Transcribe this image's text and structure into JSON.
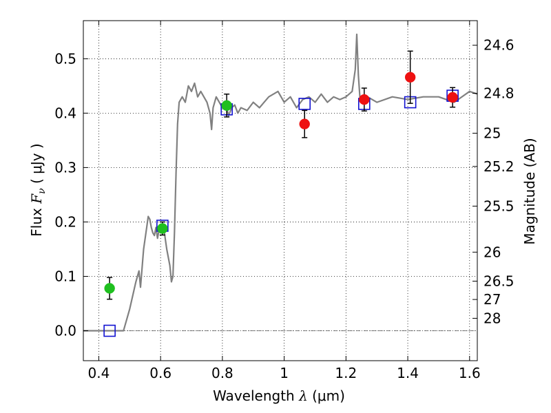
{
  "chart_data": {
    "type": "scatter",
    "title": "",
    "xlabel": {
      "pre": "Wavelength  ",
      "sym": "λ",
      "unit": " (μm)"
    },
    "ylabel": {
      "pre": "Flux  ",
      "sym": "F",
      "sub": "ν",
      "unit": "  ( μJy )"
    },
    "y2label": "Magnitude (AB)",
    "xlim": [
      0.35,
      1.625
    ],
    "ylim": [
      -0.055,
      0.57
    ],
    "grid": true,
    "xticks": [
      {
        "v": 0.4,
        "label": "0.4"
      },
      {
        "v": 0.6,
        "label": "0.6"
      },
      {
        "v": 0.8,
        "label": "0.8"
      },
      {
        "v": 1.0,
        "label": "1"
      },
      {
        "v": 1.2,
        "label": "1.2"
      },
      {
        "v": 1.4,
        "label": "1.4"
      },
      {
        "v": 1.6,
        "label": "1.6"
      }
    ],
    "yticks": [
      {
        "v": 0.0,
        "label": "0.0"
      },
      {
        "v": 0.1,
        "label": "0.1"
      },
      {
        "v": 0.2,
        "label": "0.2"
      },
      {
        "v": 0.3,
        "label": "0.3"
      },
      {
        "v": 0.4,
        "label": "0.4"
      },
      {
        "v": 0.5,
        "label": "0.5"
      }
    ],
    "y2ticks": [
      {
        "label": "24.6",
        "flux": 0.5248
      },
      {
        "label": "24.8",
        "flux": 0.4365
      },
      {
        "label": "25",
        "flux": 0.3631
      },
      {
        "label": "25.2",
        "flux": 0.302
      },
      {
        "label": "25.5",
        "flux": 0.2291
      },
      {
        "label": "26",
        "flux": 0.1445
      },
      {
        "label": "26.5",
        "flux": 0.0912
      },
      {
        "label": "27",
        "flux": 0.0575
      },
      {
        "label": "28",
        "flux": 0.0229
      }
    ],
    "series": [
      {
        "type": "line",
        "color": "#808080",
        "x": [
          0.35,
          0.48,
          0.5,
          0.52,
          0.53,
          0.535,
          0.545,
          0.555,
          0.56,
          0.565,
          0.57,
          0.575,
          0.58,
          0.585,
          0.59,
          0.595,
          0.6,
          0.61,
          0.62,
          0.63,
          0.635,
          0.64,
          0.645,
          0.65,
          0.655,
          0.66,
          0.67,
          0.68,
          0.69,
          0.7,
          0.71,
          0.72,
          0.73,
          0.74,
          0.75,
          0.76,
          0.765,
          0.77,
          0.78,
          0.79,
          0.8,
          0.81,
          0.82,
          0.83,
          0.84,
          0.85,
          0.86,
          0.88,
          0.9,
          0.92,
          0.95,
          0.98,
          1.0,
          1.02,
          1.04,
          1.06,
          1.08,
          1.1,
          1.12,
          1.14,
          1.16,
          1.18,
          1.2,
          1.22,
          1.23,
          1.235,
          1.24,
          1.245,
          1.25,
          1.27,
          1.3,
          1.35,
          1.4,
          1.45,
          1.5,
          1.55,
          1.6,
          1.625
        ],
        "y": [
          0.0,
          0.0,
          0.04,
          0.09,
          0.11,
          0.08,
          0.15,
          0.19,
          0.21,
          0.205,
          0.19,
          0.18,
          0.175,
          0.19,
          0.17,
          0.185,
          0.18,
          0.19,
          0.15,
          0.12,
          0.09,
          0.1,
          0.18,
          0.29,
          0.38,
          0.42,
          0.43,
          0.42,
          0.45,
          0.44,
          0.455,
          0.43,
          0.44,
          0.43,
          0.42,
          0.4,
          0.37,
          0.41,
          0.43,
          0.42,
          0.41,
          0.42,
          0.395,
          0.41,
          0.415,
          0.4,
          0.41,
          0.405,
          0.42,
          0.41,
          0.43,
          0.44,
          0.42,
          0.43,
          0.41,
          0.425,
          0.43,
          0.42,
          0.435,
          0.42,
          0.43,
          0.425,
          0.43,
          0.44,
          0.48,
          0.545,
          0.47,
          0.43,
          0.42,
          0.43,
          0.42,
          0.43,
          0.425,
          0.43,
          0.43,
          0.42,
          0.44,
          0.435
        ]
      },
      {
        "type": "points",
        "marker": "circle",
        "color": "#1fbf1f",
        "points": [
          {
            "x": 0.435,
            "y": 0.078,
            "err": 0.02
          },
          {
            "x": 0.606,
            "y": 0.188,
            "err": 0.012
          },
          {
            "x": 0.814,
            "y": 0.414,
            "err": 0.021
          }
        ]
      },
      {
        "type": "points",
        "marker": "circle",
        "color": "#ee1111",
        "points": [
          {
            "x": 1.066,
            "y": 0.38,
            "err": 0.025
          },
          {
            "x": 1.259,
            "y": 0.425,
            "err": 0.021
          },
          {
            "x": 1.408,
            "y": 0.466,
            "err": 0.048
          },
          {
            "x": 1.545,
            "y": 0.429,
            "err": 0.018
          }
        ]
      },
      {
        "type": "points",
        "marker": "square",
        "color": "#1010d0",
        "points": [
          {
            "x": 0.435,
            "y": 0.0
          },
          {
            "x": 0.606,
            "y": 0.193
          },
          {
            "x": 0.814,
            "y": 0.407
          },
          {
            "x": 1.066,
            "y": 0.417
          },
          {
            "x": 1.259,
            "y": 0.417
          },
          {
            "x": 1.408,
            "y": 0.42
          },
          {
            "x": 1.545,
            "y": 0.432
          }
        ]
      }
    ]
  }
}
